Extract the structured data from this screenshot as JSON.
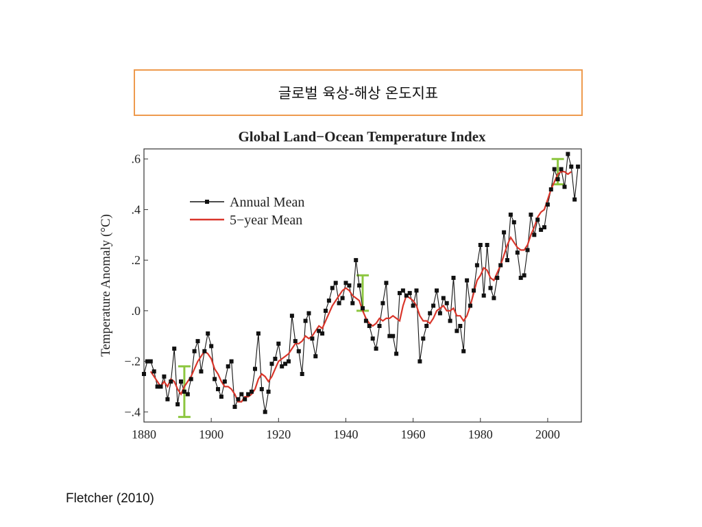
{
  "slide_title": "글로벌 육상-해상 온도지표",
  "caption": "Fletcher (2010)",
  "colors": {
    "title_border": "#ee9a4d",
    "annual": "#111111",
    "five_year": "#d9352a",
    "error_bar": "#8cc63f"
  },
  "chart_data": {
    "type": "line",
    "title": "Global Land−Ocean Temperature Index",
    "xlabel": "",
    "ylabel": "Temperature Anomaly (°C)",
    "xlim": [
      1880,
      2010
    ],
    "ylim": [
      -0.44,
      0.64
    ],
    "x_ticks": [
      {
        "value": 1880,
        "label": "1880"
      },
      {
        "value": 1900,
        "label": "1900"
      },
      {
        "value": 1920,
        "label": "1920"
      },
      {
        "value": 1940,
        "label": "1940"
      },
      {
        "value": 1960,
        "label": "1960"
      },
      {
        "value": 1980,
        "label": "1980"
      },
      {
        "value": 2000,
        "label": "2000"
      }
    ],
    "y_ticks": [
      {
        "value": 0.6,
        "label": ".6"
      },
      {
        "value": 0.4,
        "label": ".4"
      },
      {
        "value": 0.2,
        "label": ".2"
      },
      {
        "value": 0.0,
        "label": ".0"
      },
      {
        "value": -0.2,
        "label": "−.2"
      },
      {
        "value": -0.4,
        "label": "−.4"
      }
    ],
    "grid": false,
    "legend_position": "top-left",
    "series": [
      {
        "name": "Annual Mean",
        "marker": "square",
        "x": [
          1880,
          1881,
          1882,
          1883,
          1884,
          1885,
          1886,
          1887,
          1888,
          1889,
          1890,
          1891,
          1892,
          1893,
          1894,
          1895,
          1896,
          1897,
          1898,
          1899,
          1900,
          1901,
          1902,
          1903,
          1904,
          1905,
          1906,
          1907,
          1908,
          1909,
          1910,
          1911,
          1912,
          1913,
          1914,
          1915,
          1916,
          1917,
          1918,
          1919,
          1920,
          1921,
          1922,
          1923,
          1924,
          1925,
          1926,
          1927,
          1928,
          1929,
          1930,
          1931,
          1932,
          1933,
          1934,
          1935,
          1936,
          1937,
          1938,
          1939,
          1940,
          1941,
          1942,
          1943,
          1944,
          1945,
          1946,
          1947,
          1948,
          1949,
          1950,
          1951,
          1952,
          1953,
          1954,
          1955,
          1956,
          1957,
          1958,
          1959,
          1960,
          1961,
          1962,
          1963,
          1964,
          1965,
          1966,
          1967,
          1968,
          1969,
          1970,
          1971,
          1972,
          1973,
          1974,
          1975,
          1976,
          1977,
          1978,
          1979,
          1980,
          1981,
          1982,
          1983,
          1984,
          1985,
          1986,
          1987,
          1988,
          1989,
          1990,
          1991,
          1992,
          1993,
          1994,
          1995,
          1996,
          1997,
          1998,
          1999,
          2000,
          2001,
          2002,
          2003,
          2004,
          2005,
          2006,
          2007,
          2008,
          2009
        ],
        "values": [
          -0.25,
          -0.2,
          -0.2,
          -0.24,
          -0.3,
          -0.3,
          -0.26,
          -0.35,
          -0.28,
          -0.15,
          -0.37,
          -0.28,
          -0.32,
          -0.33,
          -0.27,
          -0.16,
          -0.12,
          -0.24,
          -0.16,
          -0.09,
          -0.14,
          -0.27,
          -0.31,
          -0.34,
          -0.28,
          -0.22,
          -0.2,
          -0.38,
          -0.35,
          -0.33,
          -0.35,
          -0.33,
          -0.32,
          -0.23,
          -0.09,
          -0.31,
          -0.4,
          -0.32,
          -0.21,
          -0.19,
          -0.13,
          -0.22,
          -0.21,
          -0.2,
          -0.02,
          -0.12,
          -0.16,
          -0.25,
          -0.04,
          -0.01,
          -0.11,
          -0.18,
          -0.08,
          -0.09,
          0.0,
          0.04,
          0.09,
          0.11,
          0.03,
          0.05,
          0.11,
          0.1,
          0.03,
          0.2,
          0.1,
          0.01,
          -0.04,
          -0.06,
          -0.11,
          -0.15,
          -0.06,
          0.03,
          0.11,
          -0.1,
          -0.1,
          -0.17,
          0.07,
          0.08,
          0.06,
          0.07,
          0.02,
          0.08,
          -0.2,
          -0.11,
          -0.06,
          -0.01,
          0.02,
          0.08,
          -0.01,
          0.05,
          0.03,
          -0.04,
          0.13,
          -0.08,
          -0.06,
          -0.16,
          0.12,
          0.02,
          0.08,
          0.18,
          0.26,
          0.06,
          0.26,
          0.09,
          0.05,
          0.13,
          0.18,
          0.31,
          0.2,
          0.38,
          0.35,
          0.23,
          0.13,
          0.14,
          0.24,
          0.38,
          0.3,
          0.36,
          0.32,
          0.33,
          0.42,
          0.48,
          0.56,
          0.52,
          0.56,
          0.49,
          0.62,
          0.57,
          0.44,
          0.57
        ]
      },
      {
        "name": "5−year Mean",
        "x": [
          1882,
          1883,
          1884,
          1885,
          1886,
          1887,
          1888,
          1889,
          1890,
          1891,
          1892,
          1893,
          1894,
          1895,
          1896,
          1897,
          1898,
          1899,
          1900,
          1901,
          1902,
          1903,
          1904,
          1905,
          1906,
          1907,
          1908,
          1909,
          1910,
          1911,
          1912,
          1913,
          1914,
          1915,
          1916,
          1917,
          1918,
          1919,
          1920,
          1921,
          1922,
          1923,
          1924,
          1925,
          1926,
          1927,
          1928,
          1929,
          1930,
          1931,
          1932,
          1933,
          1934,
          1935,
          1936,
          1937,
          1938,
          1939,
          1940,
          1941,
          1942,
          1943,
          1944,
          1945,
          1946,
          1947,
          1948,
          1949,
          1950,
          1951,
          1952,
          1953,
          1954,
          1955,
          1956,
          1957,
          1958,
          1959,
          1960,
          1961,
          1962,
          1963,
          1964,
          1965,
          1966,
          1967,
          1968,
          1969,
          1970,
          1971,
          1972,
          1973,
          1974,
          1975,
          1976,
          1977,
          1978,
          1979,
          1980,
          1981,
          1982,
          1983,
          1984,
          1985,
          1986,
          1987,
          1988,
          1989,
          1990,
          1991,
          1992,
          1993,
          1994,
          1995,
          1996,
          1997,
          1998,
          1999,
          2000,
          2001,
          2002,
          2003,
          2004,
          2005,
          2006,
          2007
        ],
        "values": [
          -0.24,
          -0.26,
          -0.28,
          -0.3,
          -0.28,
          -0.3,
          -0.27,
          -0.28,
          -0.31,
          -0.33,
          -0.3,
          -0.28,
          -0.26,
          -0.23,
          -0.2,
          -0.18,
          -0.16,
          -0.17,
          -0.19,
          -0.23,
          -0.25,
          -0.28,
          -0.3,
          -0.3,
          -0.31,
          -0.33,
          -0.36,
          -0.36,
          -0.34,
          -0.34,
          -0.33,
          -0.31,
          -0.27,
          -0.25,
          -0.26,
          -0.28,
          -0.26,
          -0.23,
          -0.2,
          -0.19,
          -0.18,
          -0.17,
          -0.15,
          -0.13,
          -0.13,
          -0.12,
          -0.1,
          -0.11,
          -0.1,
          -0.08,
          -0.06,
          -0.07,
          -0.04,
          -0.01,
          0.02,
          0.04,
          0.06,
          0.08,
          0.09,
          0.08,
          0.06,
          0.05,
          0.04,
          0.0,
          -0.03,
          -0.05,
          -0.06,
          -0.05,
          -0.03,
          -0.04,
          -0.03,
          -0.03,
          -0.02,
          -0.03,
          -0.04,
          0.02,
          0.06,
          0.05,
          0.04,
          0.02,
          -0.02,
          -0.04,
          -0.04,
          -0.05,
          -0.03,
          0.0,
          0.01,
          0.02,
          0.0,
          0.0,
          0.01,
          -0.02,
          -0.02,
          -0.04,
          -0.02,
          0.02,
          0.07,
          0.12,
          0.14,
          0.17,
          0.16,
          0.13,
          0.12,
          0.15,
          0.18,
          0.22,
          0.26,
          0.29,
          0.27,
          0.25,
          0.24,
          0.24,
          0.26,
          0.3,
          0.33,
          0.37,
          0.39,
          0.4,
          0.44,
          0.48,
          0.51,
          0.54,
          0.55,
          0.55,
          0.54,
          0.55
        ]
      }
    ],
    "error_bars": [
      {
        "x": 1892,
        "low": -0.42,
        "high": -0.22
      },
      {
        "x": 1945,
        "low": 0.0,
        "high": 0.14
      },
      {
        "x": 2003,
        "low": 0.5,
        "high": 0.6
      }
    ]
  }
}
